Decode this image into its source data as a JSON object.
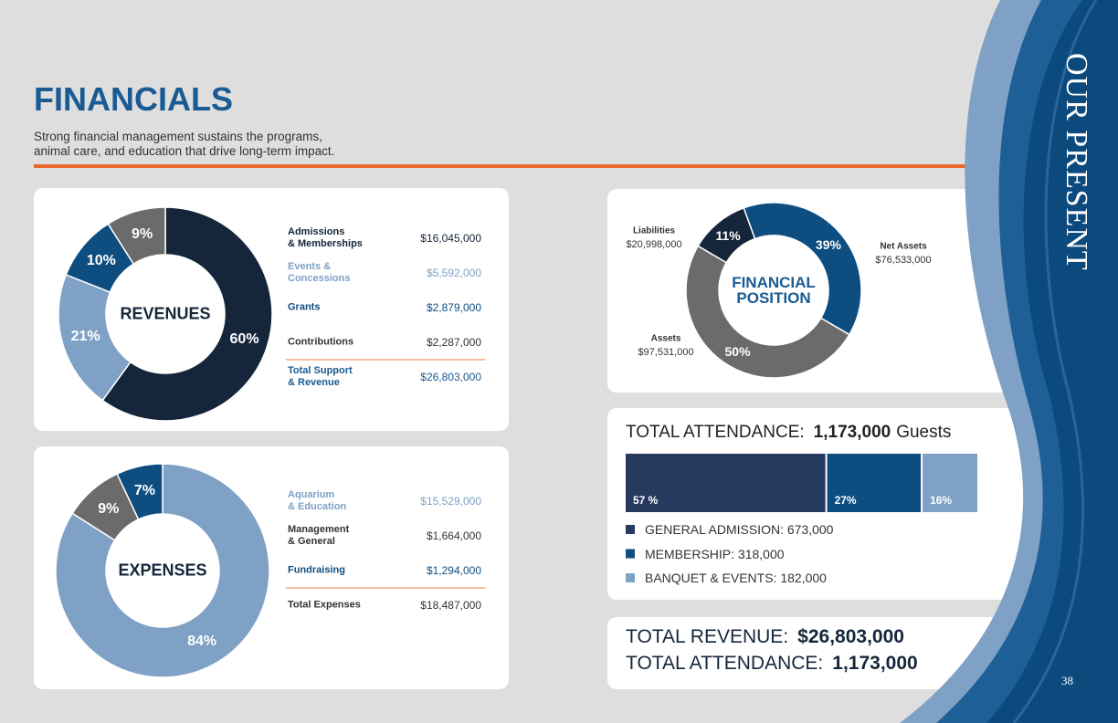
{
  "header": {
    "title": "FINANCIALS",
    "subtitle": "Strong financial management sustains the programs,\nanimal care, and education that drive long-term impact."
  },
  "side_title": "OUR PRESENT",
  "page_number": "38",
  "chart_data": [
    {
      "type": "donut",
      "title": "REVENUES",
      "categories": [
        "Admissions\n& Memberships",
        "Events &\nConcessions",
        "Grants",
        "Contributions"
      ],
      "amounts": [
        "$16,045,000",
        "$5,592,000",
        "$2,879,000",
        "$2,287,000"
      ],
      "values": [
        60,
        21,
        10,
        9
      ],
      "value_labels": [
        "60%",
        "21%",
        "10%",
        "9%"
      ],
      "colors": [
        "#15263b",
        "#7ea1c5",
        "#0e4d80",
        "#6b6b6b"
      ],
      "total": {
        "label": "Total Support\n& Revenue",
        "amount": "$26,803,000"
      }
    },
    {
      "type": "donut",
      "title": "EXPENSES",
      "categories": [
        "Aquarium\n& Education",
        "Management\n& General",
        "Fundraising"
      ],
      "amounts": [
        "$15,529,000",
        "$1,664,000",
        "$1,294,000"
      ],
      "values": [
        84,
        9,
        7
      ],
      "value_labels": [
        "84%",
        "9%",
        "7%"
      ],
      "colors": [
        "#7ea1c5",
        "#6b6b6b",
        "#0e4d80"
      ],
      "total": {
        "label": "Total Expenses",
        "amount": "$18,487,000"
      }
    },
    {
      "type": "donut",
      "title": "FINANCIAL\nPOSITION",
      "categories": [
        "Net Assets",
        "Assets",
        "Liabilities"
      ],
      "amounts": [
        "$76,533,000",
        "$97,531,000",
        "$20,998,000"
      ],
      "values": [
        39,
        50,
        11
      ],
      "value_labels": [
        "39%",
        "50%",
        "11%"
      ],
      "colors": [
        "#0e4d80",
        "#6b6b6b",
        "#15263b"
      ]
    },
    {
      "type": "stacked-bar",
      "title": "TOTAL ATTENDANCE:",
      "total": "1,173,000",
      "unit": "Guests",
      "series": [
        {
          "name": "GENERAL ADMISSION: 673,000",
          "color": "#253a5e",
          "values": [
            57
          ],
          "value_labels": [
            "57 %"
          ]
        },
        {
          "name": "MEMBERSHIP: 318,000",
          "color": "#0e4d80",
          "values": [
            27
          ],
          "value_labels": [
            "27%"
          ]
        },
        {
          "name": "BANQUET & EVENTS: 182,000",
          "color": "#7ea1c5",
          "values": [
            16
          ],
          "value_labels": [
            "16%"
          ]
        }
      ]
    }
  ],
  "summary": [
    {
      "label": "TOTAL REVENUE:",
      "value": "$26,803,000"
    },
    {
      "label": "TOTAL ATTENDANCE:",
      "value": "1,173,000"
    }
  ]
}
